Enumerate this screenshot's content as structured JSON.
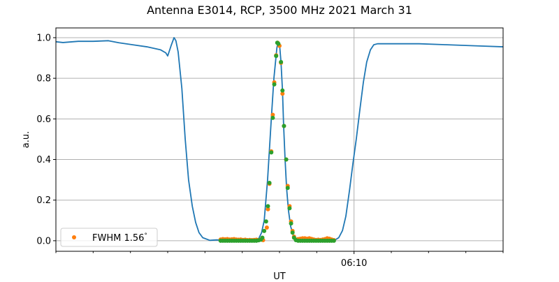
{
  "chart_data": {
    "type": "line",
    "title": "Antenna E3014, RCP, 3500 MHz 2021 March 31",
    "xlabel": "UT",
    "ylabel": "a.u.",
    "x_unit": "minutes after 06:00 UT",
    "xlim": [
      2,
      14
    ],
    "ylim": [
      -0.052,
      1.048
    ],
    "x_major_ticks": [
      {
        "value": 10,
        "label": "06:10"
      }
    ],
    "x_minor_ticks": [
      2,
      3,
      4,
      5,
      6,
      7,
      8,
      9,
      11,
      12,
      13,
      14
    ],
    "y_ticks": [
      {
        "value": 0,
        "label": "0.0"
      },
      {
        "value": 0.2,
        "label": "0.2"
      },
      {
        "value": 0.4,
        "label": "0.4"
      },
      {
        "value": 0.6,
        "label": "0.6"
      },
      {
        "value": 0.8,
        "label": "0.8"
      },
      {
        "value": 1.0,
        "label": "1.0"
      }
    ],
    "grid": true,
    "legend_position": "lower-left",
    "legend": [
      {
        "label": "FWHM 1.56",
        "degree_symbol": "°",
        "color": "#ff7f0e",
        "marker": "dot"
      }
    ],
    "series": [
      {
        "kind": "line",
        "color": "#1f77b4",
        "x": [
          2.0,
          2.19,
          2.6,
          3.0,
          3.41,
          3.69,
          4.06,
          4.44,
          4.81,
          4.95,
          5.0,
          5.09,
          5.17,
          5.22,
          5.28,
          5.38,
          5.47,
          5.56,
          5.66,
          5.75,
          5.84,
          5.94,
          6.13,
          6.31,
          6.6,
          7.0,
          7.44,
          7.52,
          7.59,
          7.68,
          7.78,
          7.85,
          7.93,
          7.96,
          8.0,
          8.04,
          8.08,
          8.11,
          8.15,
          8.19,
          8.24,
          8.3,
          8.38,
          8.47,
          8.8,
          9.2,
          9.5,
          9.59,
          9.69,
          9.78,
          9.88,
          9.97,
          10.06,
          10.16,
          10.25,
          10.34,
          10.44,
          10.53,
          10.63,
          11.0,
          11.75,
          12.5,
          13.25,
          14.0
        ],
        "y": [
          0.98,
          0.976,
          0.982,
          0.982,
          0.985,
          0.975,
          0.965,
          0.955,
          0.94,
          0.925,
          0.91,
          0.96,
          1.0,
          0.985,
          0.93,
          0.75,
          0.5,
          0.3,
          0.17,
          0.09,
          0.04,
          0.015,
          0.002,
          0.004,
          0.003,
          0.002,
          0.01,
          0.04,
          0.1,
          0.3,
          0.6,
          0.8,
          0.95,
          0.975,
          0.97,
          0.88,
          0.74,
          0.57,
          0.4,
          0.26,
          0.15,
          0.07,
          0.02,
          0.005,
          0.001,
          0.001,
          0.005,
          0.015,
          0.05,
          0.12,
          0.25,
          0.38,
          0.5,
          0.65,
          0.78,
          0.88,
          0.94,
          0.965,
          0.97,
          0.97,
          0.97,
          0.965,
          0.96,
          0.955
        ]
      },
      {
        "kind": "scatter",
        "name": "FWHM 1.56",
        "color": "#ff7f0e",
        "x": [
          6.42,
          6.48,
          6.54,
          6.6,
          6.66,
          6.72,
          6.78,
          6.84,
          6.9,
          6.96,
          7.02,
          7.08,
          7.14,
          7.2,
          7.26,
          7.32,
          7.38,
          7.44,
          7.5,
          7.56,
          7.66,
          7.69,
          7.73,
          7.78,
          7.82,
          7.86,
          7.91,
          7.95,
          8.0,
          8.04,
          8.08,
          8.12,
          8.18,
          8.22,
          8.27,
          8.31,
          8.35,
          8.39,
          8.44,
          8.5,
          8.56,
          8.62,
          8.68,
          8.74,
          8.8,
          8.86,
          8.92,
          8.98,
          9.04,
          9.1,
          9.16,
          9.22,
          9.28,
          9.34,
          9.4,
          9.46
        ],
        "y": [
          0.006,
          0.008,
          0.007,
          0.008,
          0.006,
          0.007,
          0.008,
          0.006,
          0.005,
          0.006,
          0.004,
          0.005,
          0.003,
          0.004,
          0.003,
          0.004,
          0.005,
          0.003,
          0.006,
          0.003,
          0.065,
          0.155,
          0.28,
          0.44,
          0.62,
          0.78,
          0.913,
          0.975,
          0.96,
          0.876,
          0.724,
          0.565,
          0.4,
          0.27,
          0.17,
          0.095,
          0.048,
          0.02,
          0.006,
          0.008,
          0.01,
          0.012,
          0.012,
          0.01,
          0.012,
          0.009,
          0.006,
          0.004,
          0.005,
          0.004,
          0.006,
          0.008,
          0.012,
          0.01,
          0.006,
          0.003
        ]
      },
      {
        "kind": "scatter",
        "color": "#2ca02c",
        "x": [
          6.42,
          6.48,
          6.54,
          6.6,
          6.66,
          6.72,
          6.78,
          6.84,
          6.9,
          6.96,
          7.02,
          7.08,
          7.14,
          7.2,
          7.26,
          7.32,
          7.38,
          7.44,
          7.5,
          7.54,
          7.59,
          7.64,
          7.69,
          7.73,
          7.78,
          7.82,
          7.86,
          7.91,
          7.94,
          7.97,
          8.04,
          8.08,
          8.12,
          8.18,
          8.22,
          8.27,
          8.31,
          8.35,
          8.39,
          8.44,
          8.5,
          8.56,
          8.62,
          8.68,
          8.74,
          8.8,
          8.86,
          8.92,
          8.98,
          9.04,
          9.1,
          9.16,
          9.22,
          9.28,
          9.34,
          9.4,
          9.46
        ],
        "y": [
          0,
          0,
          0,
          0,
          0,
          0,
          0,
          0,
          0,
          0,
          0,
          0,
          0,
          0,
          0,
          0,
          0,
          0.002,
          0.005,
          0.015,
          0.048,
          0.095,
          0.17,
          0.285,
          0.435,
          0.605,
          0.77,
          0.91,
          0.975,
          0.97,
          0.88,
          0.74,
          0.565,
          0.4,
          0.26,
          0.16,
          0.085,
          0.04,
          0.015,
          0.003,
          0,
          0,
          0,
          0,
          0,
          0,
          0,
          0,
          0,
          0,
          0,
          0,
          0,
          0,
          0,
          0,
          0
        ]
      }
    ]
  }
}
